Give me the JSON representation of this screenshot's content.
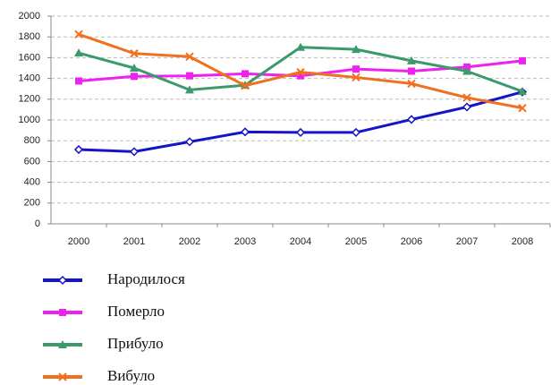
{
  "chart_data": {
    "type": "line",
    "categories": [
      "2000",
      "2001",
      "2002",
      "2003",
      "2004",
      "2005",
      "2006",
      "2007",
      "2008"
    ],
    "series": [
      {
        "name": "Народилося",
        "color": "#1414c8",
        "marker": "diamond",
        "values": [
          715,
          695,
          790,
          885,
          880,
          880,
          1005,
          1125,
          1270
        ]
      },
      {
        "name": "Померло",
        "color": "#ee22ee",
        "marker": "square",
        "values": [
          1375,
          1420,
          1425,
          1445,
          1425,
          1490,
          1470,
          1510,
          1570
        ]
      },
      {
        "name": "Прибуло",
        "color": "#3a9a6a",
        "marker": "triangle",
        "values": [
          1645,
          1500,
          1290,
          1335,
          1700,
          1680,
          1570,
          1470,
          1275
        ]
      },
      {
        "name": "Вибуло",
        "color": "#f07020",
        "marker": "x",
        "values": [
          1825,
          1640,
          1610,
          1330,
          1460,
          1410,
          1350,
          1215,
          1115
        ]
      }
    ],
    "ylim": [
      0,
      2000
    ],
    "yticks": [
      0,
      200,
      400,
      600,
      800,
      1000,
      1200,
      1400,
      1600,
      1800,
      2000
    ],
    "grid": true
  }
}
